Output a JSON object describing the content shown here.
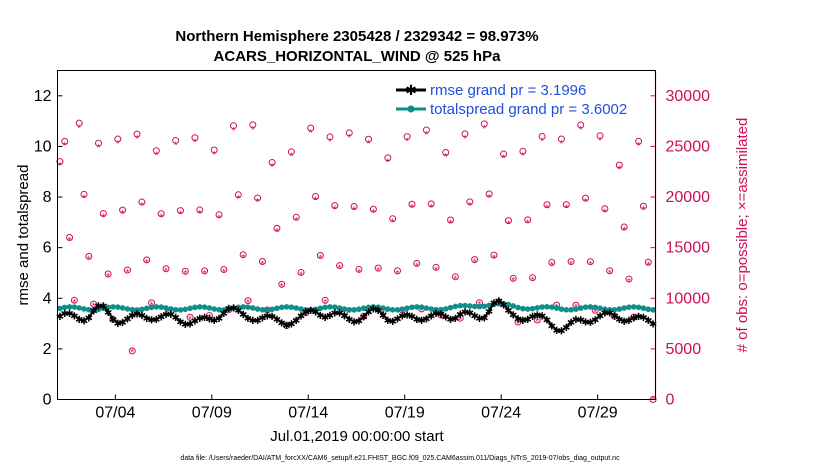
{
  "chart_data": {
    "type": "line",
    "title": "Northern Hemisphere 2305428 / 2329342 = 98.973%",
    "subtitle": "ACARS_HORIZONTAL_WIND @ 525 hPa",
    "xlabel": "Jul.01,2019 00:00:00 start",
    "ylabel_left": "rmse and totalspread",
    "ylabel_right": "# of obs: o=possible; ×=assimilated",
    "x_range_days": [
      1.0,
      32.0
    ],
    "ylim_left": [
      0,
      13
    ],
    "ylim_right": [
      0,
      32500
    ],
    "x_ticks": [
      {
        "day": 4,
        "label": "07/04"
      },
      {
        "day": 9,
        "label": "07/09"
      },
      {
        "day": 14,
        "label": "07/14"
      },
      {
        "day": 19,
        "label": "07/19"
      },
      {
        "day": 24,
        "label": "07/24"
      },
      {
        "day": 29,
        "label": "07/29"
      }
    ],
    "y_ticks_left": [
      "0",
      "2",
      "4",
      "6",
      "8",
      "10",
      "12"
    ],
    "y_ticks_right": [
      "0",
      "5000",
      "10000",
      "15000",
      "20000",
      "25000",
      "30000"
    ],
    "legend_position": "top-right",
    "series": [
      {
        "name": "rmse grand pr = 3.1996",
        "color": "#000000",
        "marker": "star",
        "axis": "left",
        "mean": 3.2,
        "bumps": [
          {
            "day": 3.2,
            "height": 0.5,
            "width": 0.6
          },
          {
            "day": 9.8,
            "height": 0.35,
            "width": 0.5
          },
          {
            "day": 14.3,
            "height": 0.35,
            "width": 0.5
          },
          {
            "day": 17.6,
            "height": 0.4,
            "width": 0.6
          },
          {
            "day": 22.0,
            "height": 0.35,
            "width": 0.5
          },
          {
            "day": 23.7,
            "height": 0.75,
            "width": 0.5
          },
          {
            "day": 27.2,
            "height": -0.3,
            "width": 0.6
          }
        ]
      },
      {
        "name": "totalspread grand pr = 3.6002",
        "color": "#0d8f8a",
        "marker": "circle",
        "axis": "left",
        "mean": 3.6,
        "bumps": [
          {
            "day": 23.5,
            "height": 0.15,
            "width": 1.5
          }
        ]
      },
      {
        "name": "# obs possible",
        "color": "#cc0f5a",
        "marker": "open-circle",
        "axis": "right",
        "in_legend": false,
        "n_points": 124,
        "pattern_k": [
          26500,
          19500,
          13500,
          9000
        ],
        "pattern_m": [
          0.95,
          1.0,
          0.95,
          1.0,
          1.0,
          0.9
        ],
        "overrides": [
          {
            "index": 0,
            "value": 23500
          },
          {
            "index": 1,
            "value": 25500
          },
          {
            "index": 2,
            "value": 16000
          },
          {
            "index": 3,
            "value": 9800
          },
          {
            "index": 15,
            "value": 4800
          },
          {
            "index": 123,
            "value": 0
          }
        ]
      },
      {
        "name": "# obs assimilated",
        "color": "#cc0f5a",
        "marker": "asterisk",
        "axis": "right",
        "in_legend": false,
        "ratio": 0.985
      }
    ]
  },
  "footnote": "data file: /Users/raeder/DAI/ATM_forcXX/CAM6_setup/f.e21.FHIST_BGC.f09_025.CAM6assim.011/Diags_NTrS_2019-07/obs_diag_output.nc"
}
